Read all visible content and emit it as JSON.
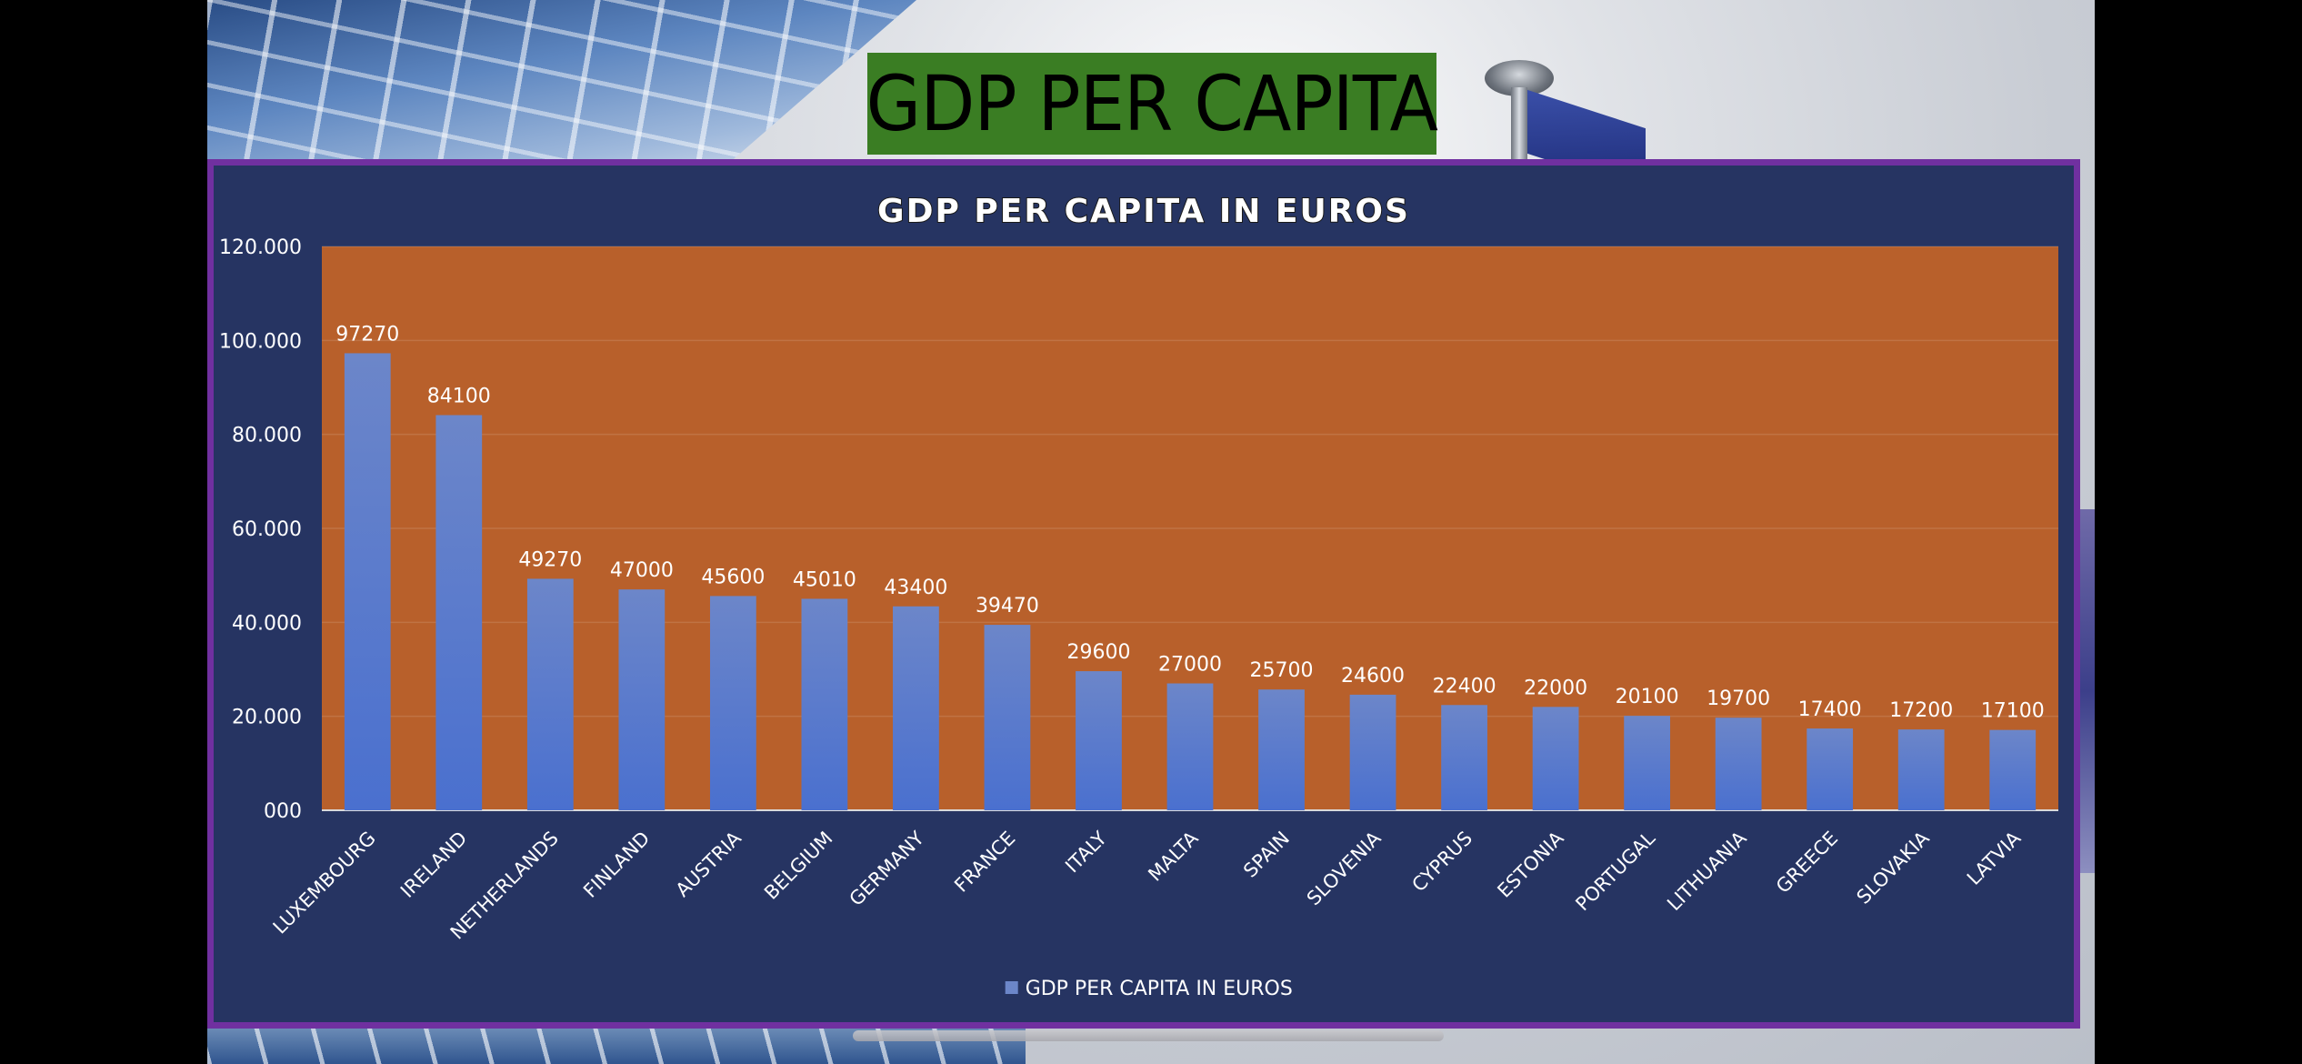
{
  "slide": {
    "title": "GDP PER CAPITA"
  },
  "colors": {
    "title_bg": "#3a7d23",
    "panel_bg": "#263462",
    "panel_border": "#7030a0",
    "plot_bg": "#b8602b",
    "bar_top": "#6c86c9",
    "bar_bottom": "#4a70cf",
    "text": "#ffffff"
  },
  "chart_data": {
    "type": "bar",
    "title": "GDP PER CAPITA IN EUROS",
    "xlabel": "",
    "ylabel": "",
    "ylim": [
      0,
      120000
    ],
    "yticks": [
      "000",
      "20.000",
      "40.000",
      "60.000",
      "80.000",
      "100.000",
      "120.000"
    ],
    "tick_values": [
      0,
      20000,
      40000,
      60000,
      80000,
      100000,
      120000
    ],
    "grid": true,
    "legend_position": "bottom",
    "categories": [
      "LUXEMBOURG",
      "IRELAND",
      "NETHERLANDS",
      "FINLAND",
      "AUSTRIA",
      "BELGIUM",
      "GERMANY",
      "FRANCE",
      "ITALY",
      "MALTA",
      "SPAIN",
      "SLOVENIA",
      "CYPRUS",
      "ESTONIA",
      "PORTUGAL",
      "LITHUANIA",
      "GREECE",
      "SLOVAKIA",
      "LATVIA"
    ],
    "series": [
      {
        "name": "GDP PER CAPITA IN EUROS",
        "values": [
          97270,
          84100,
          49270,
          47000,
          45600,
          45010,
          43400,
          39470,
          29600,
          27000,
          25700,
          24600,
          22400,
          22000,
          20100,
          19700,
          17400,
          17200,
          17100
        ]
      }
    ]
  }
}
